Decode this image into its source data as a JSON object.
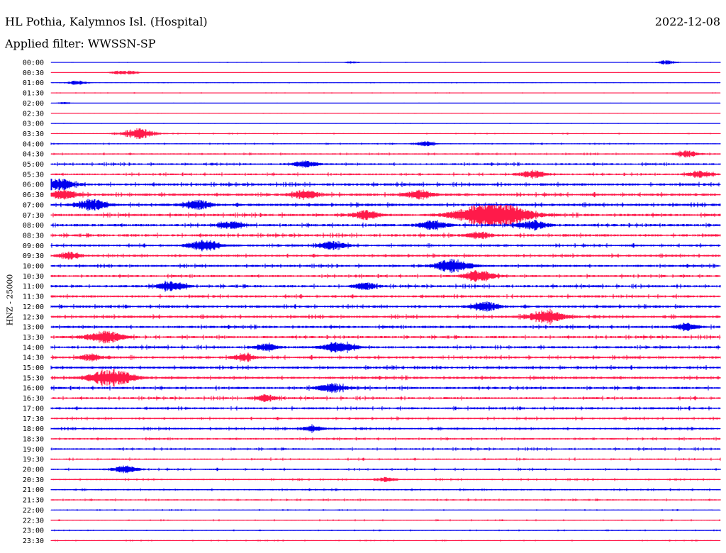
{
  "header": {
    "station": "HL Pothia, Kalymnos Isl. (Hospital)",
    "date": "2022-12-08",
    "filter": "Applied filter: WWSSN-SP"
  },
  "chart_data": {
    "type": "line",
    "ylabel": "HNZ - 25000",
    "grid": false,
    "legend": "none",
    "series_colors": [
      "#0000ee",
      "#ff1a4a"
    ],
    "rows": [
      {
        "label": "00:00",
        "level": 0.15,
        "events": [
          [
            0.45,
            1
          ],
          [
            0.92,
            2
          ]
        ]
      },
      {
        "label": "00:30",
        "level": 0.15,
        "events": [
          [
            0.1,
            1.5
          ],
          [
            0.12,
            1.5
          ]
        ]
      },
      {
        "label": "01:00",
        "level": 0.2,
        "events": [
          [
            0.04,
            2
          ]
        ]
      },
      {
        "label": "01:30",
        "level": 0.2,
        "events": []
      },
      {
        "label": "02:00",
        "level": 0.12,
        "events": [
          [
            0.02,
            1
          ]
        ]
      },
      {
        "label": "02:30",
        "level": 0.15,
        "events": []
      },
      {
        "label": "03:00",
        "level": 0.15,
        "events": []
      },
      {
        "label": "03:30",
        "level": 0.3,
        "events": [
          [
            0.13,
            5
          ]
        ]
      },
      {
        "label": "04:00",
        "level": 0.35,
        "events": [
          [
            0.56,
            2
          ]
        ]
      },
      {
        "label": "04:30",
        "level": 0.45,
        "events": [
          [
            0.95,
            3
          ]
        ]
      },
      {
        "label": "05:00",
        "level": 0.6,
        "events": [
          [
            0.38,
            3
          ]
        ]
      },
      {
        "label": "05:30",
        "level": 0.6,
        "events": [
          [
            0.72,
            3.5
          ],
          [
            0.97,
            3
          ]
        ]
      },
      {
        "label": "06:00",
        "level": 0.8,
        "events": [
          [
            0.01,
            5
          ]
        ]
      },
      {
        "label": "06:30",
        "level": 0.8,
        "events": [
          [
            0.02,
            4
          ],
          [
            0.38,
            4
          ],
          [
            0.55,
            4
          ]
        ]
      },
      {
        "label": "07:00",
        "level": 0.8,
        "events": [
          [
            0.06,
            5
          ],
          [
            0.22,
            4
          ]
        ]
      },
      {
        "label": "07:30",
        "level": 0.8,
        "events": [
          [
            0.47,
            4
          ],
          [
            0.66,
            14
          ]
        ]
      },
      {
        "label": "08:00",
        "level": 0.8,
        "events": [
          [
            0.27,
            3
          ],
          [
            0.57,
            4
          ],
          [
            0.72,
            4
          ]
        ]
      },
      {
        "label": "08:30",
        "level": 0.8,
        "events": [
          [
            0.64,
            3
          ]
        ]
      },
      {
        "label": "09:00",
        "level": 0.7,
        "events": [
          [
            0.23,
            5
          ],
          [
            0.42,
            4
          ]
        ]
      },
      {
        "label": "09:30",
        "level": 0.7,
        "events": [
          [
            0.03,
            3
          ]
        ]
      },
      {
        "label": "10:00",
        "level": 0.7,
        "events": [
          [
            0.6,
            6
          ]
        ]
      },
      {
        "label": "10:30",
        "level": 0.7,
        "events": [
          [
            0.64,
            5
          ]
        ]
      },
      {
        "label": "11:00",
        "level": 0.75,
        "events": [
          [
            0.18,
            4
          ],
          [
            0.47,
            3
          ]
        ]
      },
      {
        "label": "11:30",
        "level": 0.75,
        "events": []
      },
      {
        "label": "12:00",
        "level": 0.75,
        "events": [
          [
            0.65,
            4
          ]
        ]
      },
      {
        "label": "12:30",
        "level": 0.75,
        "events": [
          [
            0.74,
            6
          ]
        ]
      },
      {
        "label": "13:00",
        "level": 0.75,
        "events": [
          [
            0.95,
            3
          ]
        ]
      },
      {
        "label": "13:30",
        "level": 0.75,
        "events": [
          [
            0.08,
            6
          ]
        ]
      },
      {
        "label": "14:00",
        "level": 0.75,
        "events": [
          [
            0.43,
            5
          ],
          [
            0.32,
            3
          ]
        ]
      },
      {
        "label": "14:30",
        "level": 0.75,
        "events": [
          [
            0.06,
            3
          ],
          [
            0.29,
            3
          ]
        ]
      },
      {
        "label": "15:00",
        "level": 0.75,
        "events": []
      },
      {
        "label": "15:30",
        "level": 0.75,
        "events": [
          [
            0.09,
            8
          ]
        ]
      },
      {
        "label": "16:00",
        "level": 0.75,
        "events": [
          [
            0.42,
            4
          ]
        ]
      },
      {
        "label": "16:30",
        "level": 0.7,
        "events": [
          [
            0.32,
            3
          ]
        ]
      },
      {
        "label": "17:00",
        "level": 0.7,
        "events": []
      },
      {
        "label": "17:30",
        "level": 0.6,
        "events": []
      },
      {
        "label": "18:00",
        "level": 0.6,
        "events": [
          [
            0.39,
            2.5
          ]
        ]
      },
      {
        "label": "18:30",
        "level": 0.55,
        "events": []
      },
      {
        "label": "19:00",
        "level": 0.55,
        "events": []
      },
      {
        "label": "19:30",
        "level": 0.5,
        "events": []
      },
      {
        "label": "20:00",
        "level": 0.5,
        "events": [
          [
            0.11,
            3.5
          ]
        ]
      },
      {
        "label": "20:30",
        "level": 0.45,
        "events": [
          [
            0.5,
            2
          ]
        ]
      },
      {
        "label": "21:00",
        "level": 0.45,
        "events": []
      },
      {
        "label": "21:30",
        "level": 0.45,
        "events": []
      },
      {
        "label": "22:00",
        "level": 0.3,
        "events": []
      },
      {
        "label": "22:30",
        "level": 0.35,
        "events": []
      },
      {
        "label": "23:00",
        "level": 0.3,
        "events": []
      },
      {
        "label": "23:30",
        "level": 0.3,
        "events": []
      }
    ]
  }
}
